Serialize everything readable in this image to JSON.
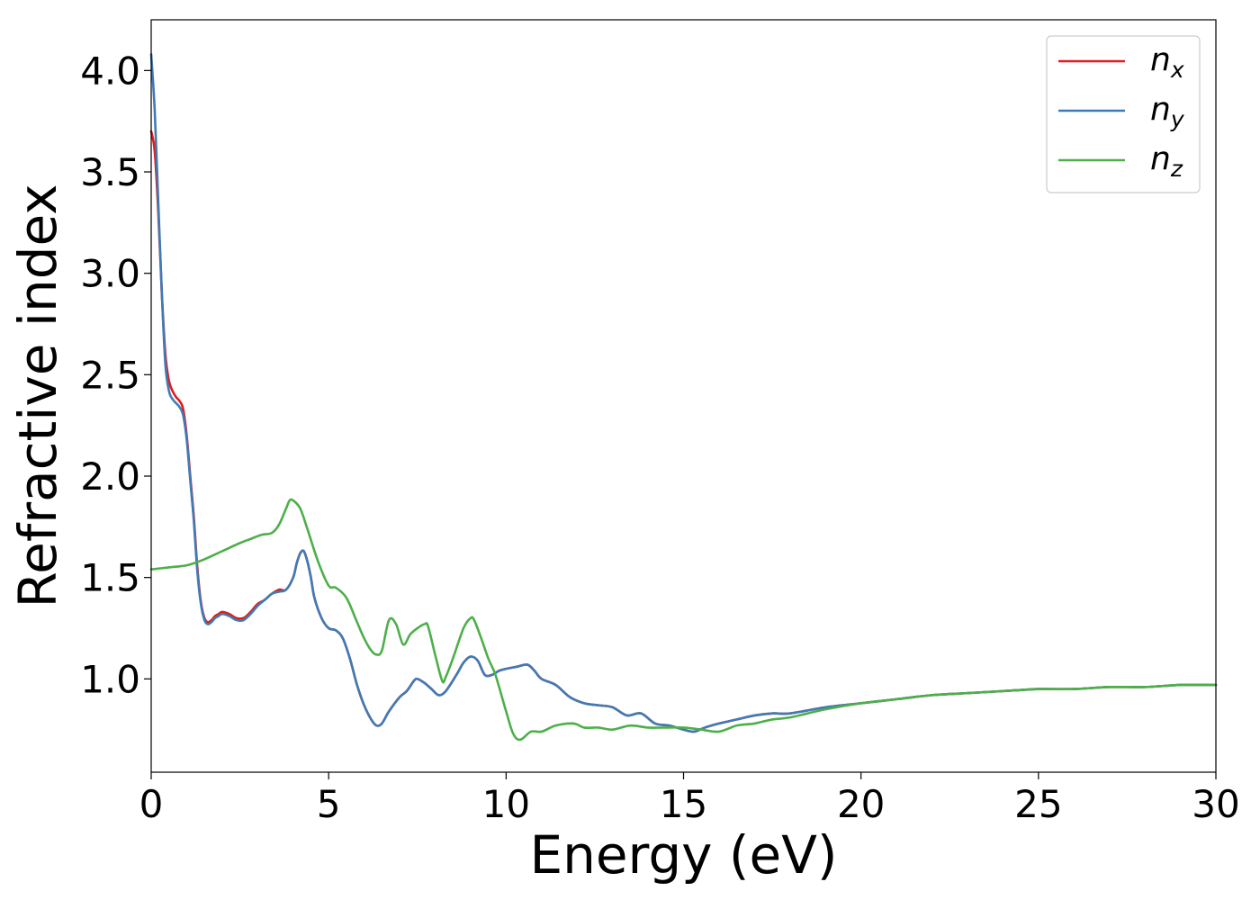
{
  "chart_data": {
    "type": "line",
    "xlabel": "Energy (eV)",
    "ylabel": "Refractive index",
    "xlim": [
      0,
      30
    ],
    "ylim": [
      0.54,
      4.25
    ],
    "xticks": [
      0,
      5,
      10,
      15,
      20,
      25,
      30
    ],
    "xtick_labels": [
      "0",
      "5",
      "10",
      "15",
      "20",
      "25",
      "30"
    ],
    "yticks": [
      1.0,
      1.5,
      2.0,
      2.5,
      3.0,
      3.5,
      4.0
    ],
    "ytick_labels": [
      "1.0",
      "1.5",
      "2.0",
      "2.5",
      "3.0",
      "3.5",
      "4.0"
    ],
    "grid": false,
    "legend_position": "top-right",
    "series": [
      {
        "name": "n_x",
        "legend_base": "n",
        "legend_sub": "x",
        "color": "#e41a1c",
        "x": [
          0,
          0.1,
          0.2,
          0.3,
          0.4,
          0.5,
          0.6,
          0.7,
          0.8,
          0.9,
          1.0,
          1.1,
          1.2,
          1.3,
          1.4,
          1.5,
          1.6,
          1.7,
          1.8,
          1.9,
          2.0,
          2.2,
          2.4,
          2.6,
          2.8,
          3.0,
          3.2,
          3.4,
          3.6,
          3.8,
          4.0,
          4.1,
          4.2,
          4.3,
          4.4,
          4.5,
          4.6,
          4.8,
          5.0,
          5.2,
          5.4,
          5.6,
          5.8,
          6.0,
          6.2,
          6.35,
          6.5,
          6.7,
          7.0,
          7.2,
          7.4,
          7.5,
          7.7,
          7.9,
          8.1,
          8.3,
          8.6,
          8.8,
          9.0,
          9.2,
          9.4,
          9.6,
          9.8,
          10.0,
          10.3,
          10.6,
          10.8,
          11.0,
          11.4,
          11.8,
          12.2,
          12.6,
          13.0,
          13.4,
          13.8,
          14.2,
          14.6,
          15.0,
          15.3,
          15.6,
          16.0,
          16.5,
          17.0,
          17.5,
          18.0,
          19.0,
          20.0,
          21.0,
          22.0,
          23.0,
          24.0,
          25.0,
          26.0,
          27.0,
          28.0,
          29.0,
          30.0
        ],
        "y": [
          3.7,
          3.6,
          3.3,
          2.9,
          2.6,
          2.47,
          2.42,
          2.39,
          2.37,
          2.33,
          2.2,
          2.0,
          1.8,
          1.55,
          1.38,
          1.3,
          1.28,
          1.29,
          1.31,
          1.32,
          1.33,
          1.32,
          1.3,
          1.3,
          1.33,
          1.37,
          1.39,
          1.42,
          1.44,
          1.44,
          1.5,
          1.57,
          1.62,
          1.63,
          1.58,
          1.5,
          1.4,
          1.3,
          1.25,
          1.24,
          1.2,
          1.1,
          0.97,
          0.87,
          0.8,
          0.77,
          0.78,
          0.84,
          0.91,
          0.94,
          0.99,
          1.0,
          0.98,
          0.95,
          0.92,
          0.94,
          1.02,
          1.08,
          1.11,
          1.09,
          1.02,
          1.02,
          1.04,
          1.05,
          1.06,
          1.07,
          1.04,
          1.0,
          0.97,
          0.91,
          0.88,
          0.87,
          0.86,
          0.82,
          0.83,
          0.78,
          0.77,
          0.75,
          0.74,
          0.76,
          0.78,
          0.8,
          0.82,
          0.83,
          0.83,
          0.86,
          0.88,
          0.9,
          0.92,
          0.93,
          0.94,
          0.95,
          0.95,
          0.96,
          0.96,
          0.97,
          0.97
        ]
      },
      {
        "name": "n_y",
        "legend_base": "n",
        "legend_sub": "y",
        "color": "#3e7bb6",
        "x": [
          0,
          0.1,
          0.2,
          0.3,
          0.4,
          0.5,
          0.6,
          0.7,
          0.8,
          0.9,
          1.0,
          1.1,
          1.2,
          1.3,
          1.4,
          1.5,
          1.6,
          1.7,
          1.8,
          1.9,
          2.0,
          2.2,
          2.4,
          2.6,
          2.8,
          3.0,
          3.2,
          3.4,
          3.6,
          3.8,
          4.0,
          4.1,
          4.2,
          4.3,
          4.4,
          4.5,
          4.6,
          4.8,
          5.0,
          5.2,
          5.4,
          5.6,
          5.8,
          6.0,
          6.2,
          6.35,
          6.5,
          6.7,
          7.0,
          7.2,
          7.4,
          7.5,
          7.7,
          7.9,
          8.1,
          8.3,
          8.6,
          8.8,
          9.0,
          9.2,
          9.4,
          9.6,
          9.8,
          10.0,
          10.3,
          10.6,
          10.8,
          11.0,
          11.4,
          11.8,
          12.2,
          12.6,
          13.0,
          13.4,
          13.8,
          14.2,
          14.6,
          15.0,
          15.3,
          15.6,
          16.0,
          16.5,
          17.0,
          17.5,
          18.0,
          19.0,
          20.0,
          21.0,
          22.0,
          23.0,
          24.0,
          25.0,
          26.0,
          27.0,
          28.0,
          29.0,
          30.0
        ],
        "y": [
          4.08,
          3.8,
          3.35,
          2.9,
          2.55,
          2.42,
          2.38,
          2.36,
          2.34,
          2.3,
          2.18,
          1.98,
          1.78,
          1.53,
          1.37,
          1.29,
          1.27,
          1.28,
          1.3,
          1.31,
          1.32,
          1.31,
          1.29,
          1.29,
          1.32,
          1.36,
          1.39,
          1.42,
          1.43,
          1.44,
          1.5,
          1.57,
          1.62,
          1.63,
          1.58,
          1.5,
          1.4,
          1.3,
          1.25,
          1.24,
          1.2,
          1.1,
          0.97,
          0.87,
          0.8,
          0.77,
          0.78,
          0.84,
          0.91,
          0.94,
          0.99,
          1.0,
          0.98,
          0.95,
          0.92,
          0.94,
          1.02,
          1.08,
          1.11,
          1.09,
          1.02,
          1.02,
          1.04,
          1.05,
          1.06,
          1.07,
          1.04,
          1.0,
          0.97,
          0.91,
          0.88,
          0.87,
          0.86,
          0.82,
          0.83,
          0.78,
          0.77,
          0.75,
          0.74,
          0.76,
          0.78,
          0.8,
          0.82,
          0.83,
          0.83,
          0.86,
          0.88,
          0.9,
          0.92,
          0.93,
          0.94,
          0.95,
          0.95,
          0.96,
          0.96,
          0.97,
          0.97
        ]
      },
      {
        "name": "n_z",
        "legend_base": "n",
        "legend_sub": "z",
        "color": "#4daf4a",
        "x": [
          0,
          0.5,
          1.0,
          1.5,
          2.0,
          2.5,
          2.8,
          3.1,
          3.4,
          3.6,
          3.8,
          3.9,
          4.0,
          4.2,
          4.4,
          4.7,
          5.0,
          5.2,
          5.5,
          5.8,
          6.0,
          6.2,
          6.35,
          6.5,
          6.7,
          6.9,
          7.1,
          7.3,
          7.5,
          7.7,
          7.8,
          8.0,
          8.2,
          8.3,
          8.5,
          8.8,
          9.0,
          9.1,
          9.3,
          9.5,
          9.7,
          10.0,
          10.2,
          10.4,
          10.7,
          11.0,
          11.4,
          11.9,
          12.2,
          12.6,
          13.0,
          13.5,
          14.0,
          14.5,
          15.0,
          15.5,
          16.0,
          16.5,
          17.0,
          17.5,
          18.0,
          19.0,
          20.0,
          21.0,
          22.0,
          23.0,
          24.0,
          25.0,
          26.0,
          27.0,
          28.0,
          29.0,
          30.0
        ],
        "y": [
          1.54,
          1.55,
          1.56,
          1.59,
          1.63,
          1.67,
          1.69,
          1.71,
          1.72,
          1.76,
          1.84,
          1.88,
          1.88,
          1.84,
          1.74,
          1.58,
          1.46,
          1.45,
          1.4,
          1.28,
          1.2,
          1.14,
          1.12,
          1.14,
          1.29,
          1.27,
          1.17,
          1.22,
          1.25,
          1.27,
          1.26,
          1.12,
          0.99,
          1.01,
          1.1,
          1.25,
          1.3,
          1.29,
          1.2,
          1.1,
          1.02,
          0.84,
          0.73,
          0.7,
          0.74,
          0.74,
          0.77,
          0.78,
          0.76,
          0.76,
          0.75,
          0.77,
          0.76,
          0.76,
          0.76,
          0.75,
          0.74,
          0.77,
          0.78,
          0.8,
          0.81,
          0.85,
          0.88,
          0.9,
          0.92,
          0.93,
          0.94,
          0.95,
          0.95,
          0.96,
          0.96,
          0.97,
          0.97
        ]
      }
    ]
  }
}
